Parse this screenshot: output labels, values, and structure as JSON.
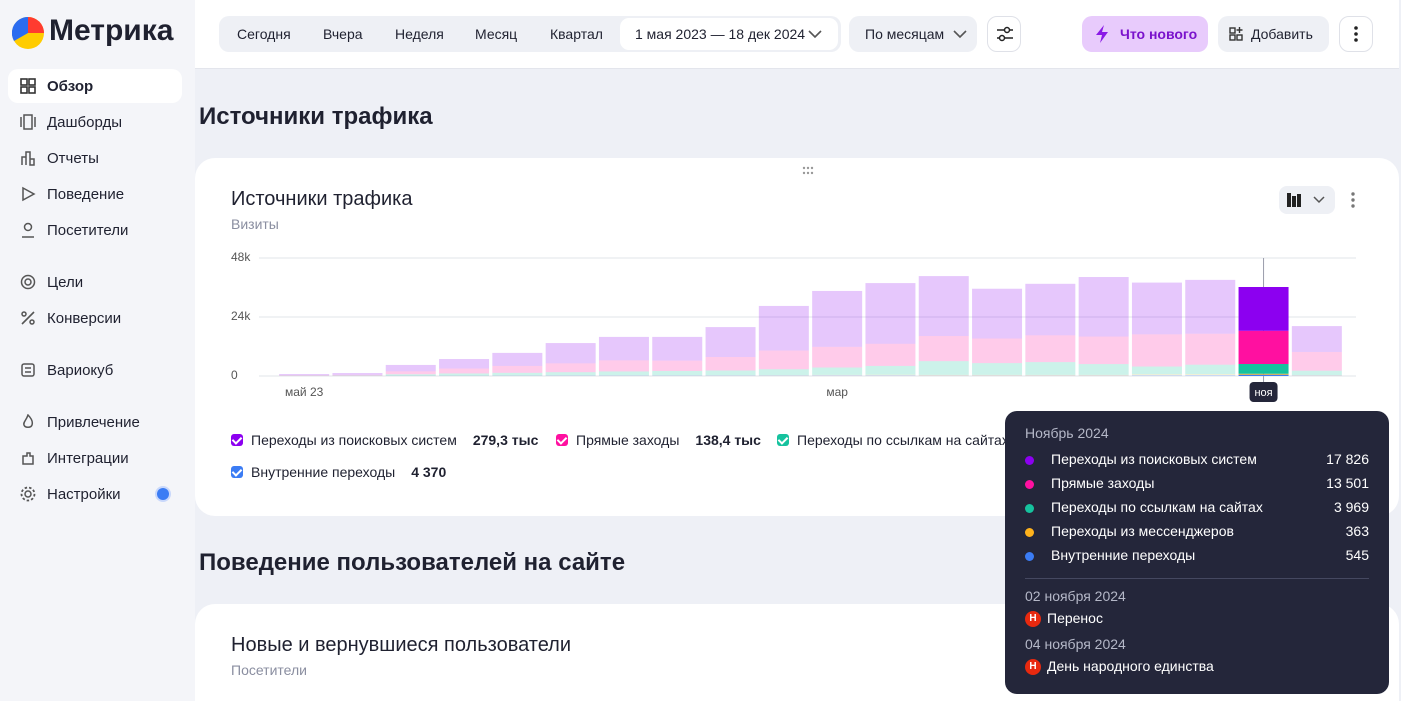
{
  "logo": "Метрика",
  "nav": [
    "Обзор",
    "Дашборды",
    "Отчеты",
    "Поведение",
    "Посетители",
    "Цели",
    "Конверсии",
    "Вариокуб",
    "Привлечение",
    "Интеграции",
    "Настройки"
  ],
  "toolbar": {
    "periods": [
      "Сегодня",
      "Вчера",
      "Неделя",
      "Месяц",
      "Квартал"
    ],
    "date_range": "1 мая 2023 — 18 дек 2024",
    "grouping": "По месяцам",
    "whats_new": "Что нового",
    "add": "Добавить"
  },
  "sections": [
    "Источники трафика",
    "Поведение пользователей на сайте"
  ],
  "chart_data": {
    "type": "bar",
    "stacked": true,
    "title": "Источники трафика",
    "subtitle": "Визиты",
    "categories": [
      "май 23",
      null,
      null,
      null,
      null,
      null,
      null,
      null,
      null,
      null,
      "мар",
      null,
      null,
      null,
      null,
      null,
      null,
      null,
      "ноя",
      null
    ],
    "ylim": [
      0,
      48000
    ],
    "yticks": [
      0,
      {
        "value": 24000,
        "label": "24k"
      },
      {
        "value": 48000,
        "label": "48k"
      }
    ],
    "grid": true,
    "series": [
      {
        "name": "Переходы из поисковых систем",
        "color": "#8c00f0",
        "total": "279,3 тыс",
        "values": [
          480,
          720,
          2600,
          3870,
          5310,
          8250,
          9540,
          9640,
          12170,
          18150,
          22750,
          24700,
          24394,
          20250,
          20950,
          24215,
          21050,
          21900,
          17826,
          10535
        ],
        "value_labels": [
          null,
          null,
          null,
          null,
          null,
          null,
          null,
          null,
          null,
          null,
          null,
          null,
          null,
          null,
          null,
          null,
          null,
          null,
          "17 826",
          null
        ]
      },
      {
        "name": "Прямые заходы",
        "color": "#ff10a0",
        "total": "138,4 тыс",
        "values": [
          200,
          300,
          1200,
          2000,
          2800,
          3600,
          4500,
          4200,
          5500,
          7600,
          8400,
          9000,
          10200,
          10000,
          10900,
          11200,
          13099,
          12600,
          13501,
          7600
        ],
        "value_labels": [
          null,
          null,
          null,
          null,
          null,
          null,
          null,
          null,
          null,
          null,
          null,
          null,
          null,
          null,
          null,
          null,
          null,
          null,
          "13 501",
          null
        ]
      },
      {
        "name": "Переходы по ссылкам на сайтах",
        "color": "#16c29e",
        "values": [
          100,
          150,
          600,
          900,
          1100,
          1300,
          1600,
          1800,
          1900,
          2400,
          3000,
          3600,
          5600,
          4800,
          5200,
          4400,
          3200,
          3900,
          3969,
          1800
        ],
        "value_labels": [
          null,
          null,
          null,
          null,
          null,
          null,
          null,
          null,
          null,
          null,
          null,
          null,
          null,
          null,
          null,
          null,
          null,
          null,
          "3 969",
          null
        ]
      },
      {
        "name": "Переходы из мессенджеров",
        "color": "#ffb21c",
        "values": [
          10,
          10,
          20,
          30,
          40,
          50,
          60,
          60,
          80,
          100,
          150,
          200,
          250,
          250,
          250,
          250,
          300,
          300,
          363,
          150
        ],
        "value_labels": [
          null,
          null,
          null,
          null,
          null,
          null,
          null,
          null,
          null,
          null,
          null,
          null,
          null,
          null,
          null,
          null,
          null,
          null,
          "363",
          null
        ]
      },
      {
        "name": "Внутренние переходы",
        "color": "#3b7cf4",
        "total": "4 370",
        "values": [
          10,
          20,
          80,
          100,
          150,
          200,
          200,
          200,
          250,
          250,
          300,
          300,
          200,
          200,
          200,
          200,
          350,
          400,
          545,
          215
        ],
        "value_labels": [
          null,
          null,
          null,
          null,
          null,
          null,
          null,
          null,
          null,
          null,
          null,
          null,
          null,
          null,
          null,
          null,
          null,
          null,
          "545",
          null
        ]
      }
    ]
  },
  "tooltip": {
    "title": "Ноябрь 2024",
    "events": [
      {
        "date": "02 ноября 2024",
        "badge": "Н",
        "name": "Перенос"
      },
      {
        "date": "04 ноября 2024",
        "badge": "Н",
        "name": "День народного единства"
      }
    ]
  },
  "card2": {
    "title": "Новые и вернувшиеся пользователи",
    "subtitle": "Посетители"
  }
}
